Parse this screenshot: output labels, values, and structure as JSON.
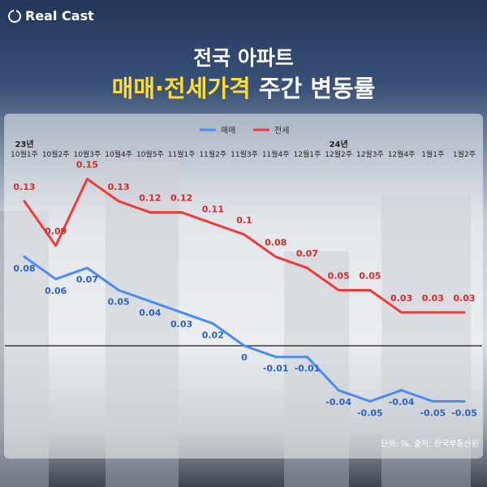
{
  "header": {
    "logo_text": "Real Cast",
    "title_line1": "전국 아파트",
    "title_highlight": "매매·전세가격",
    "title_rest": "주간 변동률"
  },
  "source_note": "단위: %, 출처: 한국부동산원",
  "colors": {
    "sale": "#4a8cf0",
    "jeonse": "#ee3b3b",
    "highlight": "#ffdd33"
  },
  "chart_data": {
    "type": "line",
    "year_labels": [
      {
        "index": 0,
        "text": "23년"
      },
      {
        "index": 10,
        "text": "24년"
      }
    ],
    "categories": [
      "10월1주",
      "10월2주",
      "10월3주",
      "10월4주",
      "10월5주",
      "11월1주",
      "11월2주",
      "11월3주",
      "11월4주",
      "12월1주",
      "12월2주",
      "12월3주",
      "12월4주",
      "1월1주",
      "1월2주"
    ],
    "series": [
      {
        "name": "매매",
        "color": "#4a8cf0",
        "values": [
          0.08,
          0.06,
          0.07,
          0.05,
          0.04,
          0.03,
          0.02,
          0,
          -0.01,
          -0.01,
          -0.04,
          -0.05,
          -0.04,
          -0.05,
          -0.05
        ],
        "labels": [
          "0.08",
          "0.06",
          "0.07",
          "0.05",
          "0.04",
          "0.03",
          "0.02",
          "0",
          "-0.01",
          "-0.01",
          "-0.04",
          "-0.05",
          "-0.04",
          "-0.05",
          "-0.05"
        ]
      },
      {
        "name": "전세",
        "color": "#ee3b3b",
        "values": [
          0.13,
          0.09,
          0.15,
          0.13,
          0.12,
          0.12,
          0.11,
          0.1,
          0.08,
          0.07,
          0.05,
          0.05,
          0.03,
          0.03,
          0.03
        ],
        "labels": [
          "0.13",
          "0.09",
          "0.15",
          "0.13",
          "0.12",
          "0.12",
          "0.11",
          "0.1",
          "0.08",
          "0.07",
          "0.05",
          "0.05",
          "0.03",
          "0.03",
          "0.03"
        ]
      }
    ],
    "zero_line": true,
    "legend_position": "top-center"
  }
}
